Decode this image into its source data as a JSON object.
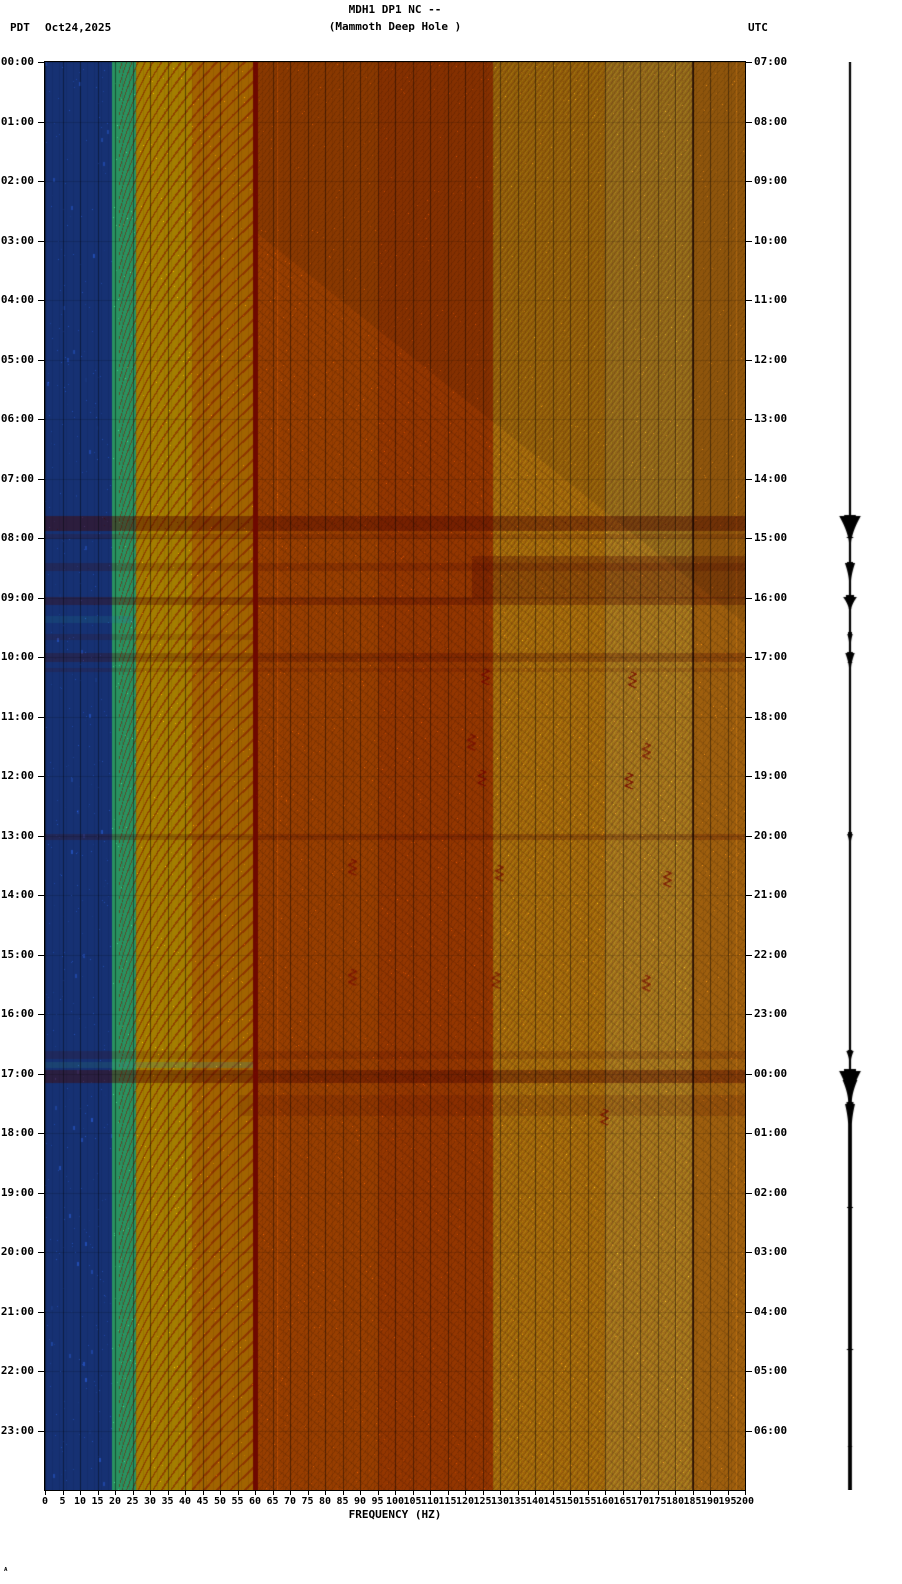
{
  "header": {
    "tz_left": "PDT",
    "date": "Oct24,2025",
    "title_line1": "MDH1 DP1 NC --",
    "title_line2": "(Mammoth Deep Hole )",
    "tz_right": "UTC"
  },
  "footer": {
    "corner_mark": "ᴬ"
  },
  "chart_data": {
    "type": "heatmap",
    "title": "MDH1 DP1 NC --",
    "subtitle": "(Mammoth Deep Hole )",
    "xlabel": "FREQUENCY (HZ)",
    "x_range": [
      0,
      200
    ],
    "x_tick_step": 5,
    "x_ticks": [
      0,
      5,
      10,
      15,
      20,
      25,
      30,
      35,
      40,
      45,
      50,
      55,
      60,
      65,
      70,
      75,
      80,
      85,
      90,
      95,
      100,
      105,
      110,
      115,
      120,
      125,
      130,
      135,
      140,
      145,
      150,
      155,
      160,
      165,
      170,
      175,
      180,
      185,
      190,
      195,
      200
    ],
    "hours": 24,
    "left_time_ticks": [
      "00:00",
      "01:00",
      "02:00",
      "03:00",
      "04:00",
      "05:00",
      "06:00",
      "07:00",
      "08:00",
      "09:00",
      "10:00",
      "11:00",
      "12:00",
      "13:00",
      "14:00",
      "15:00",
      "16:00",
      "17:00",
      "18:00",
      "19:00",
      "20:00",
      "21:00",
      "22:00",
      "23:00"
    ],
    "right_time_ticks": [
      "07:00",
      "08:00",
      "09:00",
      "10:00",
      "11:00",
      "12:00",
      "13:00",
      "14:00",
      "15:00",
      "16:00",
      "17:00",
      "18:00",
      "19:00",
      "20:00",
      "21:00",
      "22:00",
      "23:00",
      "00:00",
      "01:00",
      "02:00",
      "03:00",
      "04:00",
      "05:00",
      "06:00"
    ],
    "mains_line_hz": 60,
    "secondary_line_hz": 185,
    "line_color": "#7a0a00",
    "event_color": "#7c0c00",
    "bands": [
      {
        "f0": 0,
        "f1": 2.5,
        "color": "#1b49c8"
      },
      {
        "f0": 2.5,
        "f1": 19,
        "color": "#22c4e4"
      },
      {
        "f0": 19,
        "f1": 26,
        "color": "#3cd48c"
      },
      {
        "f0": 26,
        "f1": 42,
        "color": "#edb800"
      },
      {
        "f0": 42,
        "f1": 60,
        "color": "#ea9000"
      },
      {
        "f0": 60,
        "f1": 95,
        "color": "#dd5a00"
      },
      {
        "f0": 95,
        "f1": 128,
        "color": "#d84e00"
      },
      {
        "f0": 128,
        "f1": 160,
        "color": "#ec9212"
      },
      {
        "f0": 160,
        "f1": 185,
        "color": "#eda22a"
      },
      {
        "f0": 185,
        "f1": 200,
        "color": "#e88a14"
      }
    ],
    "events": [
      {
        "h": 7.62,
        "dur": 0.25,
        "f0": 0,
        "f1": 200,
        "alpha": 0.85
      },
      {
        "h": 7.93,
        "dur": 0.08,
        "f0": 0,
        "f1": 200,
        "alpha": 0.35
      },
      {
        "h": 8.3,
        "dur": 0.7,
        "f0": 122,
        "f1": 200,
        "alpha": 0.6
      },
      {
        "h": 8.42,
        "dur": 0.12,
        "f0": 0,
        "f1": 200,
        "alpha": 0.4
      },
      {
        "h": 8.98,
        "dur": 0.14,
        "f0": 0,
        "f1": 200,
        "alpha": 0.6
      },
      {
        "h": 9.3,
        "dur": 0.12,
        "f0": 0,
        "f1": 25,
        "alpha": 0.5,
        "color": "#30b8e8"
      },
      {
        "h": 9.6,
        "dur": 0.1,
        "f0": 0,
        "f1": 60,
        "alpha": 0.3
      },
      {
        "h": 9.93,
        "dur": 0.14,
        "f0": 0,
        "f1": 200,
        "alpha": 0.5
      },
      {
        "h": 10.18,
        "dur": 0.07,
        "f0": 0,
        "f1": 200,
        "alpha": 0.3
      },
      {
        "h": 12.97,
        "dur": 0.1,
        "f0": 0,
        "f1": 200,
        "alpha": 0.45
      },
      {
        "h": 16.62,
        "dur": 0.12,
        "f0": 0,
        "f1": 200,
        "alpha": 0.35
      },
      {
        "h": 16.8,
        "dur": 0.1,
        "f0": 0,
        "f1": 60,
        "alpha": 0.45,
        "color": "#50d8c8"
      },
      {
        "h": 16.93,
        "dur": 0.22,
        "f0": 0,
        "f1": 200,
        "alpha": 0.8
      },
      {
        "h": 17.35,
        "dur": 0.35,
        "f0": 55,
        "f1": 200,
        "alpha": 0.3
      }
    ],
    "blobs": [
      {
        "h": 10.2,
        "f": 126
      },
      {
        "h": 10.25,
        "f": 168
      },
      {
        "h": 11.3,
        "f": 122
      },
      {
        "h": 11.45,
        "f": 172
      },
      {
        "h": 11.9,
        "f": 125
      },
      {
        "h": 11.95,
        "f": 167
      },
      {
        "h": 13.4,
        "f": 88
      },
      {
        "h": 13.5,
        "f": 130
      },
      {
        "h": 13.6,
        "f": 178
      },
      {
        "h": 15.25,
        "f": 88
      },
      {
        "h": 15.3,
        "f": 129
      },
      {
        "h": 15.35,
        "f": 172
      },
      {
        "h": 17.6,
        "f": 160
      }
    ],
    "seismogram_events": [
      {
        "h": 7.63,
        "amp": 27,
        "dur": 0.45
      },
      {
        "h": 8.42,
        "amp": 11,
        "dur": 0.3
      },
      {
        "h": 8.98,
        "amp": 17,
        "dur": 0.22
      },
      {
        "h": 9.6,
        "amp": 5,
        "dur": 0.15
      },
      {
        "h": 9.93,
        "amp": 10,
        "dur": 0.25
      },
      {
        "h": 12.97,
        "amp": 5,
        "dur": 0.12
      },
      {
        "h": 16.62,
        "amp": 7,
        "dur": 0.15
      },
      {
        "h": 16.95,
        "amp": 28,
        "dur": 0.5
      },
      {
        "h": 17.5,
        "amp": 9,
        "dur": 0.35
      }
    ]
  }
}
